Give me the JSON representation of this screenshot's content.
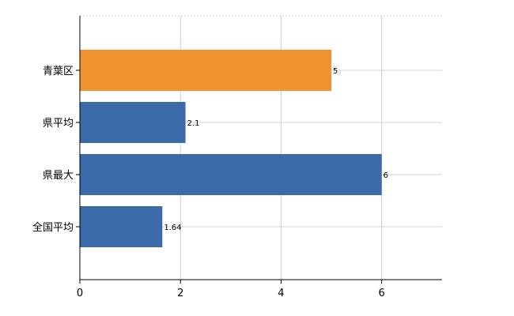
{
  "chart_data": {
    "type": "bar",
    "orientation": "horizontal",
    "categories": [
      "青葉区",
      "県平均",
      "県最大",
      "全国平均"
    ],
    "values": [
      5,
      2.1,
      6,
      1.64
    ],
    "value_labels": [
      "5",
      "2.1",
      "6",
      "1.64"
    ],
    "bar_colors": [
      "#f0922e",
      "#3a6aa8",
      "#3a6aa8",
      "#3a6aa8"
    ],
    "xlim": [
      0,
      7.2
    ],
    "xticks": [
      0,
      2,
      4,
      6
    ],
    "xtick_labels": [
      "0",
      "2",
      "4",
      "6"
    ],
    "grid": true,
    "legend": "none"
  }
}
